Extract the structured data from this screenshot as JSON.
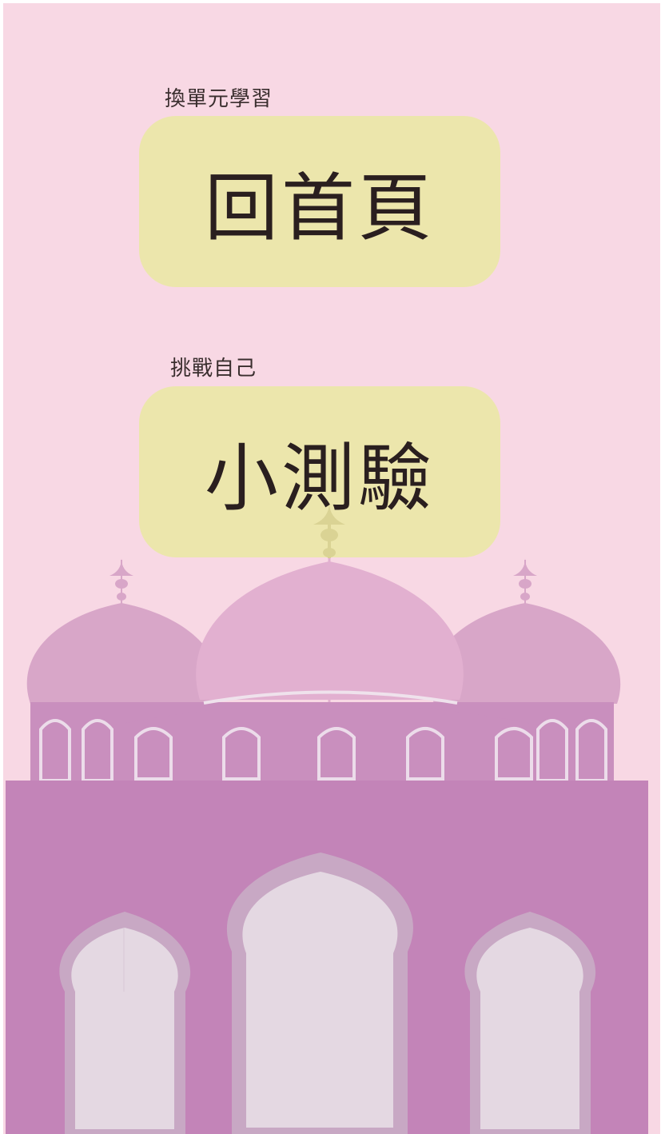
{
  "home_hint": "換單元學習",
  "home_button_label": "回首頁",
  "quiz_hint": "挑戰自己",
  "quiz_button_label": "小測驗",
  "colors": {
    "background": "#f8d8e4",
    "button": "#ece6ac",
    "text": "#2a1f1f",
    "building": "#c384b8",
    "dome_side": "#d8a6c8",
    "dome_center": "#e2b0d0",
    "arch_fill": "#e4d8e2"
  },
  "icons": [
    "mosque-illustration"
  ]
}
